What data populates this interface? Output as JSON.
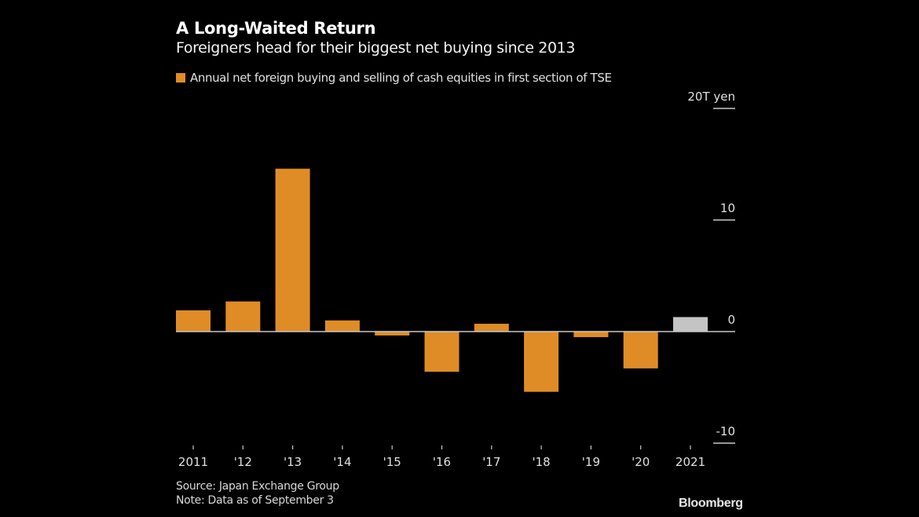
{
  "header": {
    "title": "A Long-Waited Return",
    "subtitle": "Foreigners head for their biggest net buying since 2013"
  },
  "legend": {
    "label": "Annual net foreign buying and selling of cash equities in first section of TSE",
    "color": "#e08c26"
  },
  "footer": {
    "source": "Source: Japan Exchange Group",
    "note": "Note: Data as of September 3"
  },
  "brand": "Bloomberg",
  "colors": {
    "bar": "#e08c26",
    "highlight": "#c4c4c4",
    "axis": "#c8c8c8",
    "background": "#000000"
  },
  "chart_data": {
    "type": "bar",
    "title": "A Long-Waited Return",
    "subtitle": "Foreigners head for their biggest net buying since 2013",
    "xlabel": "",
    "ylabel": "T yen",
    "categories": [
      "2011",
      "'12",
      "'13",
      "'14",
      "'15",
      "'16",
      "'17",
      "'18",
      "'19",
      "'20",
      "2021"
    ],
    "series": [
      {
        "name": "Annual net foreign buying and selling of cash equities in first section of TSE",
        "values": [
          1.9,
          2.7,
          14.6,
          1.0,
          -0.35,
          -3.6,
          0.7,
          -5.4,
          -0.5,
          -3.3,
          1.3
        ]
      }
    ],
    "highlighted_category": "2021",
    "ylim": [
      -10,
      20
    ],
    "yticks": [
      20,
      10,
      0,
      -10
    ],
    "ytick_labels": [
      "20T yen",
      "10",
      "0",
      "-10"
    ],
    "y_axis_side": "right",
    "grid": false,
    "legend_position": "top-left"
  }
}
